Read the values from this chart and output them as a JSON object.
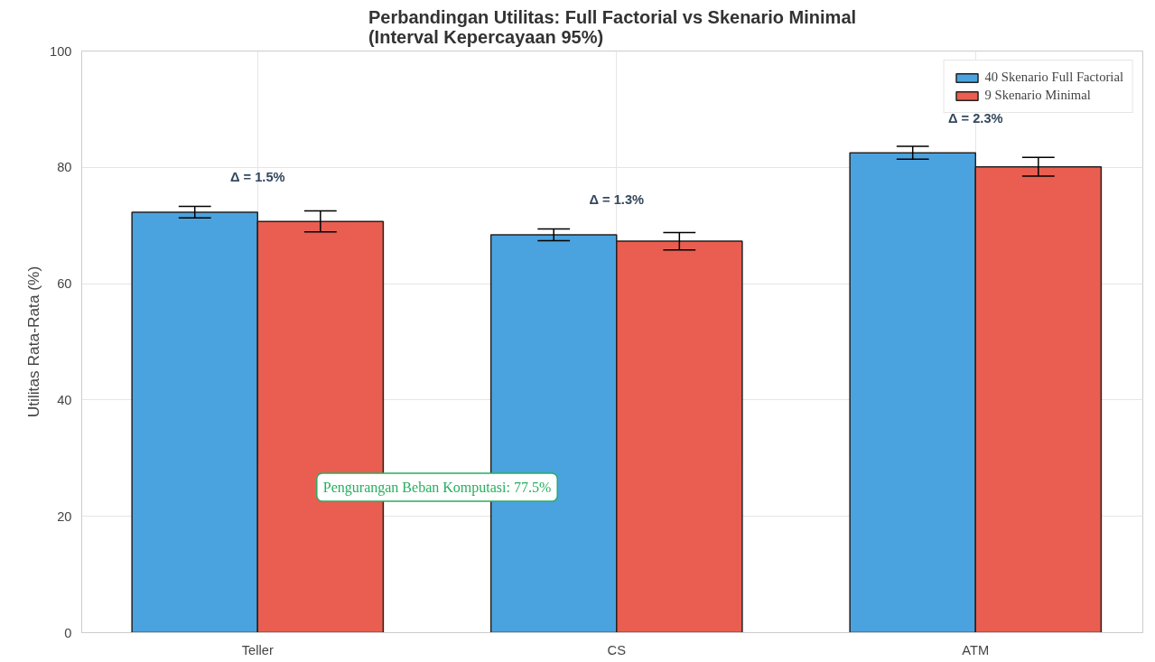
{
  "chart_data": {
    "type": "bar",
    "title": "Perbandingan Utilitas: Full Factorial vs Skenario Minimal\n(Interval Kepercayaan 95%)",
    "ylabel": "Utilitas Rata-Rata (%)",
    "categories": [
      "Teller",
      "CS",
      "ATM"
    ],
    "series": [
      {
        "name": "40 Skenario Full Factorial",
        "color": "#4aa3df",
        "values": [
          72.3,
          68.4,
          82.5
        ],
        "errors": [
          1.0,
          1.0,
          1.1
        ]
      },
      {
        "name": "9 Skenario Minimal",
        "color": "#e95e50",
        "values": [
          70.7,
          67.3,
          80.1
        ],
        "errors": [
          1.8,
          1.5,
          1.6
        ]
      }
    ],
    "ylim": [
      0,
      100
    ],
    "yticks": [
      0,
      20,
      40,
      60,
      80,
      100
    ],
    "grid": true,
    "legend": "top right",
    "annotations": [
      "Δ = 1.5%",
      "Δ = 1.3%",
      "Δ = 2.3%",
      "Pengurangan Beban Komputasi: 77.5%"
    ]
  }
}
